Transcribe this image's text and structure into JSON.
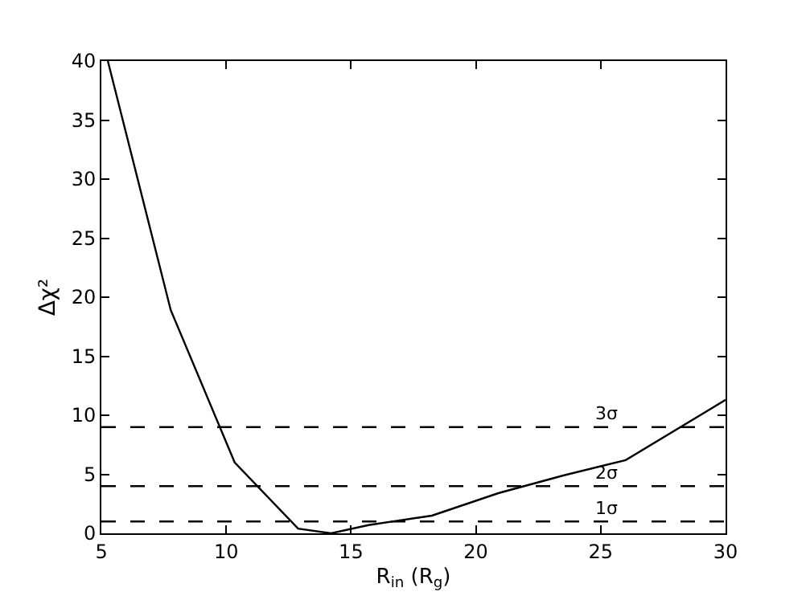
{
  "chart_data": {
    "type": "line",
    "xlabel": "R$_{in}$ (R$_{g}$)",
    "ylabel": "Δχ²",
    "x": [
      5.26,
      7.78,
      10.34,
      12.88,
      14.2,
      15.7,
      16.95,
      18.24,
      20.9,
      23.5,
      26.0,
      30.0
    ],
    "series": [
      {
        "color": "#000000",
        "values": [
          40,
          18.9,
          6.0,
          0.4,
          0,
          0.7,
          1.1,
          1.5,
          3.4,
          4.9,
          6.2,
          11.3
        ]
      }
    ],
    "xlim": [
      5,
      30
    ],
    "xticks": [
      5,
      10,
      15,
      20,
      25,
      30
    ],
    "ylim": [
      0,
      40
    ],
    "yticks": [
      0,
      5,
      10,
      15,
      20,
      25,
      30,
      35,
      40
    ],
    "marker": "none",
    "line_style": "solid",
    "ref_lines": [
      {
        "axis": "y",
        "value": 9,
        "label": "3σ",
        "color": "#000000",
        "line_style": "dashed"
      },
      {
        "axis": "y",
        "value": 4,
        "label": "2σ",
        "color": "#000000",
        "line_style": "dashed"
      },
      {
        "axis": "y",
        "value": 1,
        "label": "1σ",
        "color": "#000000",
        "line_style": "dashed"
      }
    ]
  }
}
